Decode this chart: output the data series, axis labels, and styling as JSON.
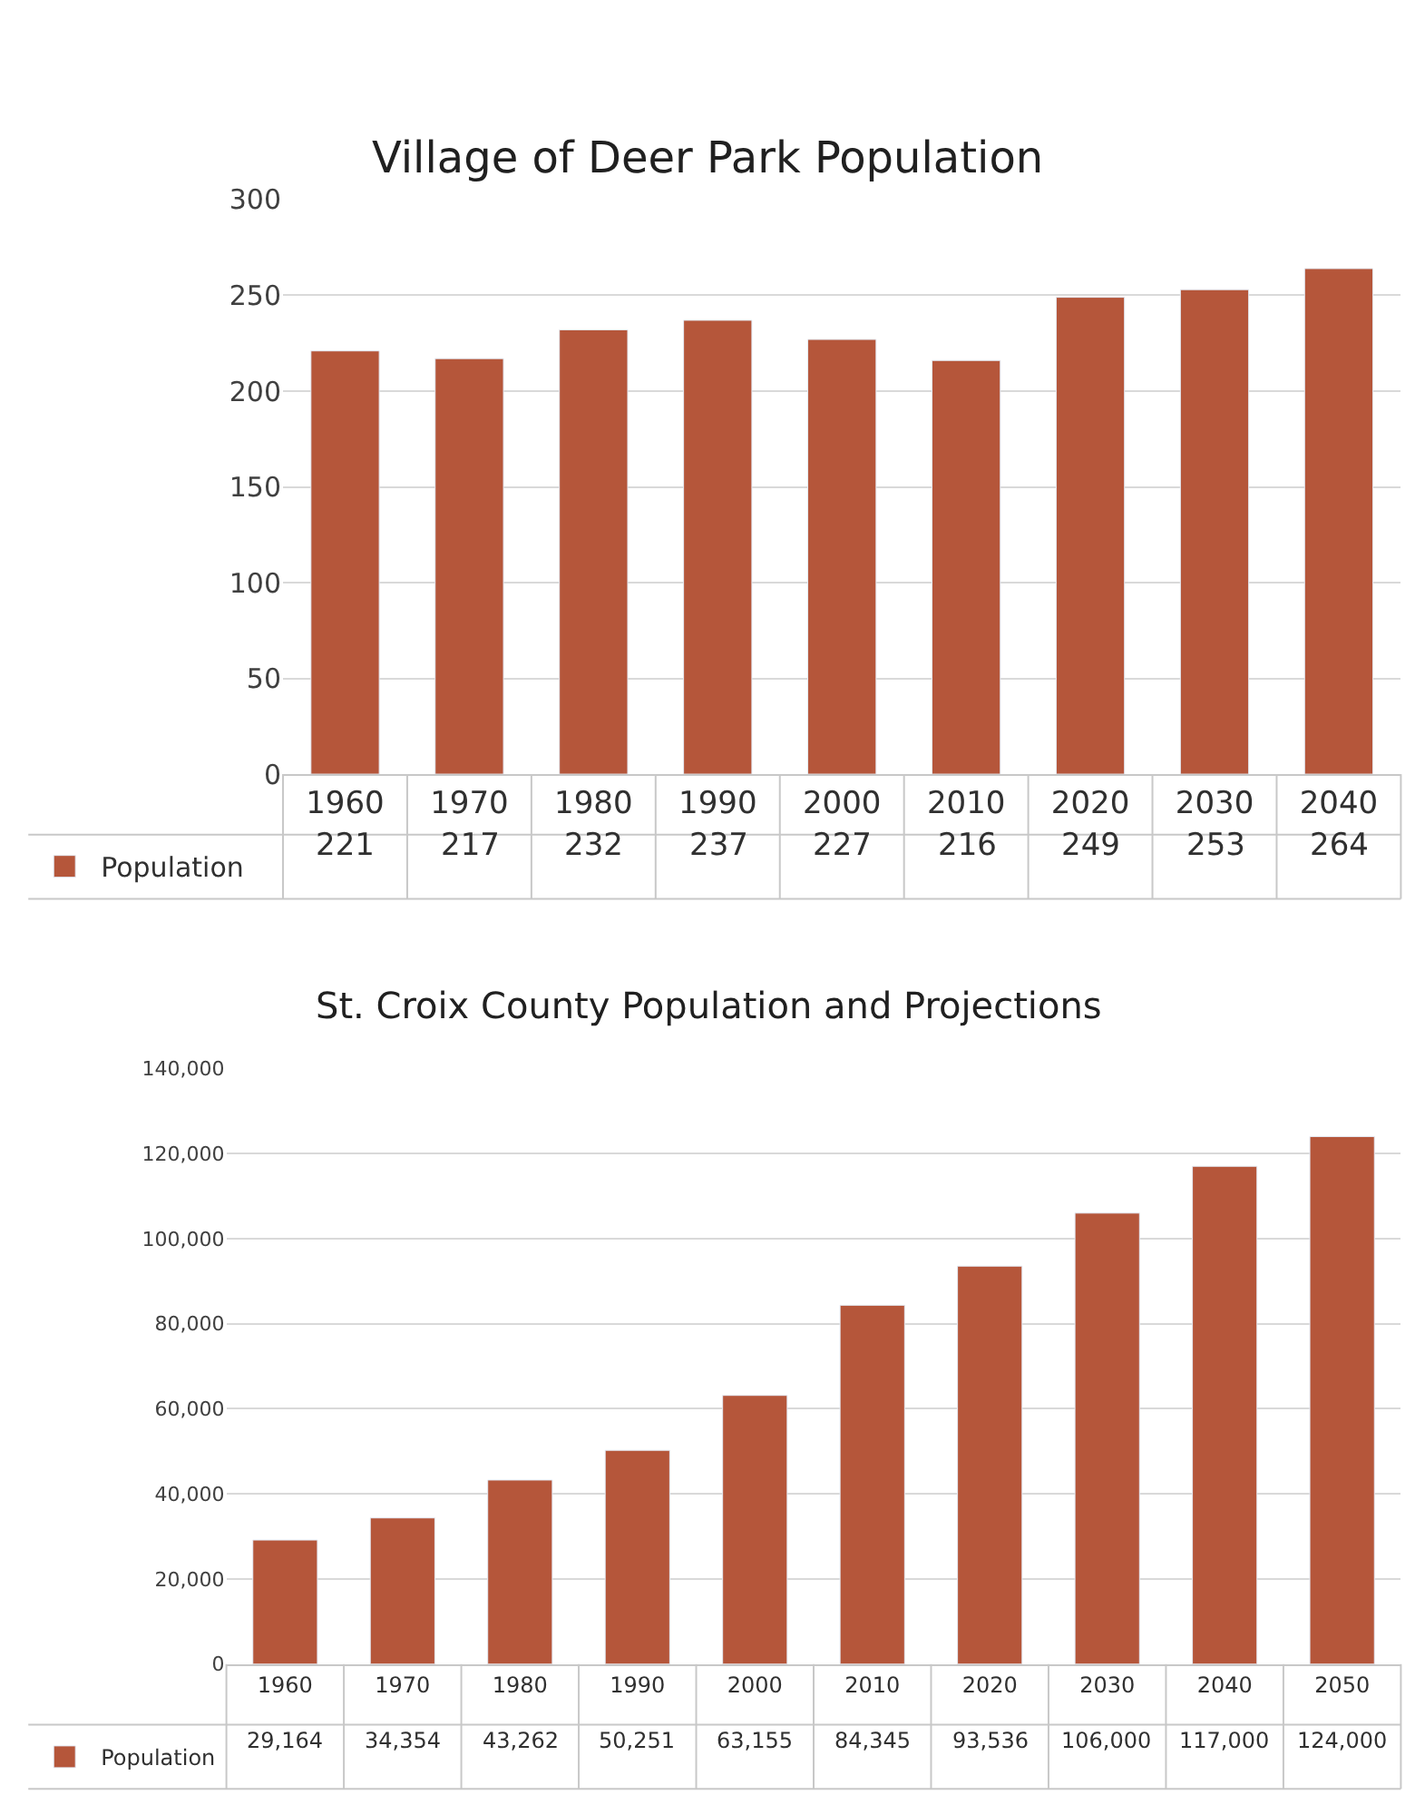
{
  "chart_data": [
    {
      "type": "bar",
      "title": "Village of Deer Park Population",
      "categories": [
        "1960",
        "1970",
        "1980",
        "1990",
        "2000",
        "2010",
        "2020",
        "2030",
        "2040"
      ],
      "series": [
        {
          "name": "Population",
          "color": "#b5563a",
          "values": [
            221,
            217,
            232,
            237,
            227,
            216,
            249,
            253,
            264
          ]
        }
      ],
      "ylim": [
        0,
        300
      ],
      "yticks": [
        0,
        50,
        100,
        150,
        200,
        250,
        300
      ],
      "grid": "y",
      "data_labels": true,
      "legend": "bottom left"
    },
    {
      "type": "bar",
      "title": "St. Croix County Population and Projections",
      "categories": [
        "1960",
        "1970",
        "1980",
        "1990",
        "2000",
        "2010",
        "2020",
        "2030",
        "2040",
        "2050"
      ],
      "series": [
        {
          "name": "Population",
          "color": "#b5563a",
          "values": [
            29164,
            34354,
            43262,
            50251,
            63155,
            84345,
            93536,
            106000,
            117000,
            124000
          ],
          "value_labels": [
            "29,164",
            "34,354",
            "43,262",
            "50,251",
            "63,155",
            "84,345",
            "93,536",
            "106,000",
            "117,000",
            "124,000"
          ]
        }
      ],
      "ylim": [
        0,
        140000
      ],
      "yticks": [
        {
          "value": 0,
          "label": "0"
        },
        {
          "value": 20000,
          "label": "20,000"
        },
        {
          "value": 40000,
          "label": "40,000"
        },
        {
          "value": 60000,
          "label": "60,000"
        },
        {
          "value": 80000,
          "label": "80,000"
        },
        {
          "value": 100000,
          "label": "100,000"
        },
        {
          "value": 120000,
          "label": "120,000"
        },
        {
          "value": 140000,
          "label": "140,000"
        }
      ],
      "grid": "y",
      "legend": "bottom left"
    }
  ]
}
